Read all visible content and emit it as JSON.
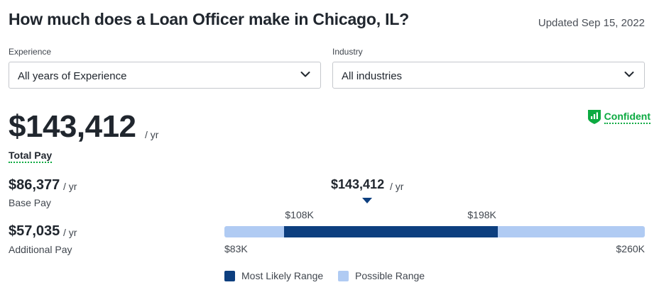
{
  "header": {
    "title": "How much does a Loan Officer make in Chicago, IL?",
    "updated": "Updated Sep 15, 2022"
  },
  "filters": {
    "experience": {
      "label": "Experience",
      "value": "All years of Experience",
      "icon": "chevron-down-icon"
    },
    "industry": {
      "label": "Industry",
      "value": "All industries",
      "icon": "chevron-down-icon"
    }
  },
  "confidence": {
    "label": "Confident",
    "icon": "shield-bars-icon",
    "color": "#0caa41"
  },
  "total_pay": {
    "amount": "$143,412",
    "unit": "/ yr",
    "label": "Total Pay"
  },
  "base_pay": {
    "amount": "$86,377",
    "unit": "/ yr",
    "label": "Base Pay"
  },
  "additional_pay": {
    "amount": "$57,035",
    "unit": "/ yr",
    "label": "Additional Pay"
  },
  "range": {
    "median": {
      "amount": "$143,412",
      "unit": "/ yr",
      "value": 143412
    },
    "min": {
      "label": "$83K",
      "value": 83000
    },
    "likely_low": {
      "label": "$108K",
      "value": 108000
    },
    "likely_high": {
      "label": "$198K",
      "value": 198000
    },
    "max": {
      "label": "$260K",
      "value": 260000
    },
    "colors": {
      "most_likely": "#0d3f7f",
      "possible": "#b0cbf3"
    }
  },
  "legend": {
    "most_likely": "Most Likely Range",
    "possible": "Possible Range"
  }
}
